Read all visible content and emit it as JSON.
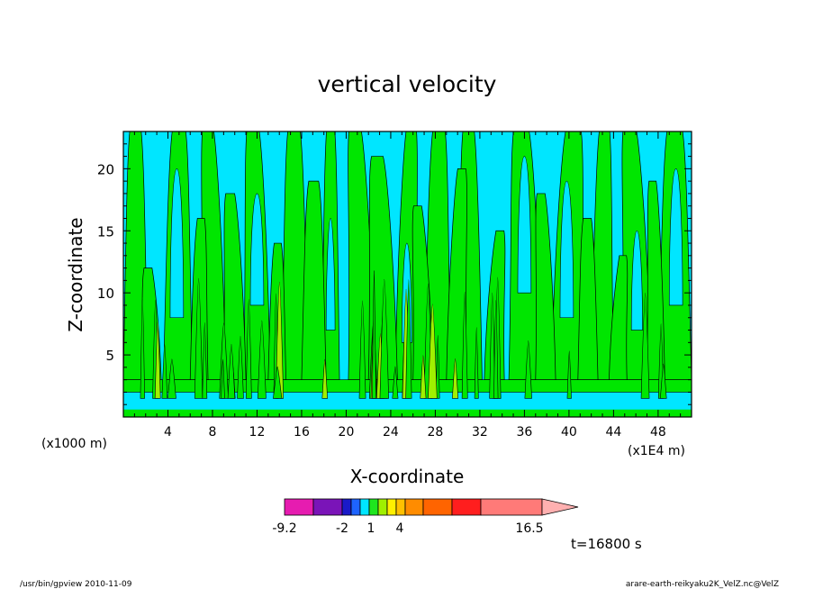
{
  "chart_data": {
    "type": "heatmap",
    "title": "vertical velocity",
    "xlabel": "X-coordinate",
    "ylabel": "Z-coordinate",
    "x_unit_left": "(x1000 m)",
    "x_unit_right": "(x1E4 m)",
    "xlim": [
      0,
      51
    ],
    "ylim": [
      0,
      23
    ],
    "x_ticks": [
      "4",
      "8",
      "12",
      "16",
      "20",
      "24",
      "28",
      "32",
      "36",
      "40",
      "44",
      "48"
    ],
    "y_ticks": [
      "5",
      "10",
      "15",
      "20"
    ],
    "colorbar": {
      "levels": [
        -9.2,
        -2,
        1,
        4,
        16.5
      ],
      "labels": [
        "-9.2",
        "-2",
        "1",
        "4",
        "16.5"
      ],
      "colors": [
        "#e61cb0",
        "#7a14b8",
        "#1a1ac8",
        "#1e64ff",
        "#00e6ff",
        "#1ee61e",
        "#a0f000",
        "#fff000",
        "#ffc000",
        "#ff8c00",
        "#ff6400",
        "#ff1e1e",
        "#ff7a78"
      ],
      "extend_color": "#ffb0b0"
    },
    "field_colors": {
      "negative": "#00e6ff",
      "positive": "#00e600",
      "strong": "#a0f000"
    },
    "time_label": "t=16800 s"
  },
  "footer": {
    "left": "/usr/bin/gpview   2010-11-09",
    "right": "arare-earth-reikyaku2K_VelZ.nc@VelZ"
  }
}
